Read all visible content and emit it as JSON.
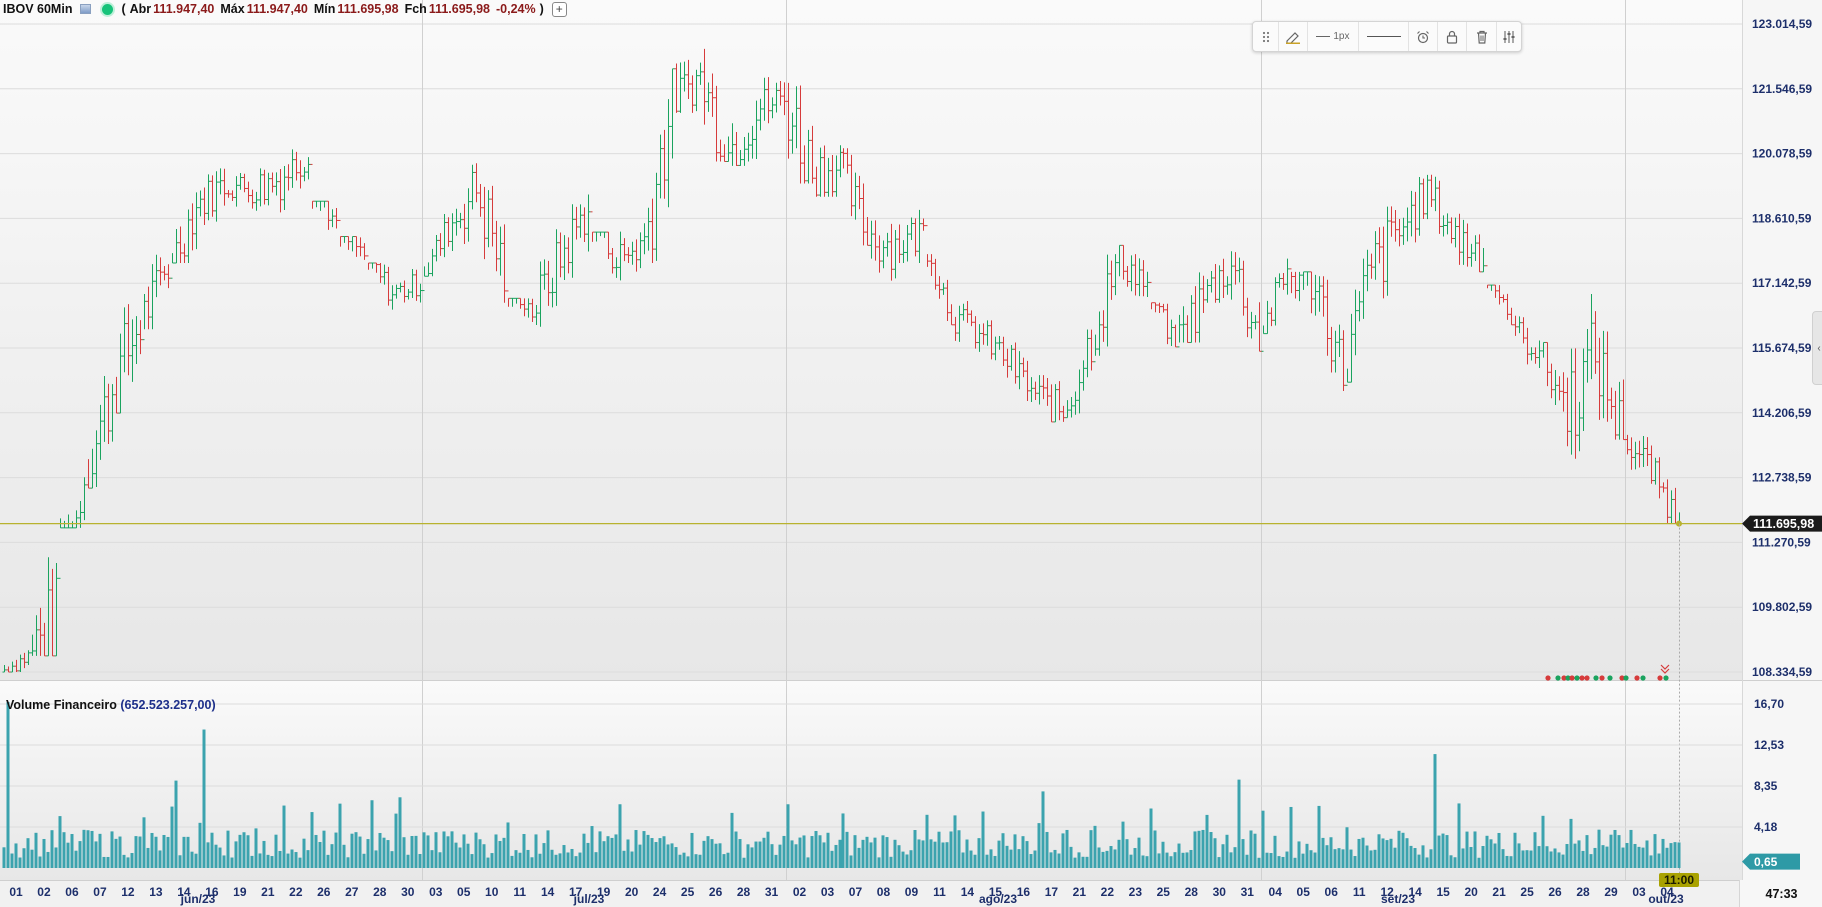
{
  "header": {
    "symbol": "IBOV 60Min",
    "paren_open": "(",
    "open_label": "Abr",
    "open_value": "111.947,40",
    "high_label": "Máx",
    "high_value": "111.947,40",
    "low_label": "Mín",
    "low_value": "111.695,98",
    "close_label": "Fch",
    "close_value": "111.695,98",
    "change_value": "-0,24%",
    "paren_close": ")",
    "add_label": "+"
  },
  "volume_legend": {
    "name": "Volume Financeiro",
    "value": "(652.523.257,00)"
  },
  "toolbar": {
    "width_label": "1px"
  },
  "side_tab": {
    "arrow": "‹"
  },
  "clock": {
    "time": "47:33"
  },
  "colors": {
    "up": "#1aa35e",
    "down": "#d63b3b",
    "volume": "#3ba3ae",
    "price_line": "#b8b22e",
    "axis_text": "#1d2f6b",
    "price_badge": "#1b1b1b",
    "time_badge": "#a9a200"
  },
  "icons": [
    "drag-handle-icon",
    "pencil-icon",
    "line-width-icon",
    "line-style-icon",
    "alarm-icon",
    "lock-icon",
    "trash-icon",
    "settings-sliders-icon"
  ],
  "chart_data": [
    {
      "type": "ohlc",
      "title": "IBOV 60Min",
      "ylim": [
        108334.59,
        123014.59
      ],
      "y_ticks": [
        "123.014,59",
        "121.546,59",
        "120.078,59",
        "118.610,59",
        "117.142,59",
        "115.674,59",
        "114.206,59",
        "112.738,59",
        "111.270,59",
        "109.802,59",
        "108.334,59"
      ],
      "y_tick_values": [
        123014.59,
        121546.59,
        120078.59,
        118610.59,
        117142.59,
        115674.59,
        114206.59,
        112738.59,
        111270.59,
        109802.59,
        108334.59
      ],
      "last_price": 111695.98,
      "last_price_label": "111.695,98",
      "x_day_labels": [
        "01",
        "02",
        "06",
        "07",
        "12",
        "13",
        "14",
        "16",
        "19",
        "21",
        "22",
        "26",
        "27",
        "28",
        "30",
        "03",
        "05",
        "10",
        "11",
        "14",
        "17",
        "19",
        "20",
        "24",
        "25",
        "26",
        "28",
        "31",
        "02",
        "03",
        "07",
        "08",
        "09",
        "11",
        "14",
        "15",
        "16",
        "17",
        "21",
        "22",
        "23",
        "25",
        "28",
        "30",
        "31",
        "04",
        "05",
        "06",
        "11",
        "12",
        "14",
        "15",
        "20",
        "21",
        "25",
        "26",
        "28",
        "29",
        "03",
        "04"
      ],
      "x_month_labels": [
        "jun/23",
        "jul/23",
        "ago/23",
        "set/23",
        "out/23"
      ],
      "current_time_label": "11:00",
      "grid": true,
      "closes_by_day": [
        108700,
        109500,
        112700,
        114700,
        116300,
        117450,
        118900,
        119400,
        119250,
        119500,
        120100,
        118300,
        117800,
        116900,
        117150,
        118400,
        119300,
        117400,
        116500,
        117700,
        118900,
        117600,
        118100,
        121300,
        121800,
        120100,
        121100,
        121300,
        119700,
        119800,
        118200,
        118000,
        118300,
        116400,
        116000,
        115400,
        114600,
        114200,
        115900,
        117700,
        117100,
        115700,
        116800,
        117600,
        115900,
        117400,
        117200,
        115100,
        117400,
        118300,
        119200,
        118200,
        117800,
        116100,
        115600,
        114300,
        115500,
        113600,
        112900,
        111696
      ],
      "highs_by_day": [
        109200,
        112900,
        113300,
        115900,
        117900,
        118300,
        119700,
        119900,
        119700,
        120200,
        120500,
        119000,
        118200,
        117600,
        117600,
        118800,
        119900,
        119900,
        116800,
        118400,
        119500,
        118300,
        119100,
        122000,
        123000,
        122900,
        122600,
        121900,
        122900,
        121400,
        120200,
        119500,
        119500,
        117800,
        116800,
        116300,
        115800,
        115700,
        116600,
        118000,
        118000,
        116700,
        118200,
        118700,
        118200,
        117700,
        117400,
        117300,
        118100,
        119800,
        119900,
        119600,
        119700,
        117100,
        116600,
        115800,
        117100,
        116800,
        114300,
        113200
      ],
      "lows_by_day": [
        108334,
        108700,
        111600,
        112500,
        114200,
        116100,
        117600,
        118200,
        118400,
        118300,
        118800,
        117700,
        116900,
        116400,
        116500,
        117300,
        117500,
        116700,
        115700,
        116100,
        117200,
        117000,
        116900,
        117600,
        121000,
        119900,
        119800,
        120000,
        119400,
        119100,
        118000,
        117200,
        117600,
        116200,
        115400,
        114800,
        114200,
        114000,
        114100,
        115500,
        116400,
        115700,
        115800,
        116700,
        115600,
        116000,
        115200,
        114700,
        114900,
        116800,
        118000,
        117900,
        117400,
        116200,
        115200,
        113300,
        113100,
        113600,
        112600,
        111696
      ],
      "volume": {
        "name": "Volume Financeiro",
        "last_value_label": "0,65",
        "ylim": [
          0,
          16.7
        ],
        "y_ticks": [
          "16,70",
          "12,53",
          "8,35",
          "4,18"
        ],
        "y_tick_values": [
          16.7,
          12.53,
          8.35,
          4.18
        ],
        "typical_level": 2.3,
        "spikes": [
          {
            "day": "01",
            "value": 16.9
          },
          {
            "day": "14",
            "value": 8.9
          },
          {
            "day": "16",
            "value": 14.1
          },
          {
            "day": "28",
            "value": 6.9
          },
          {
            "day": "30",
            "value": 7.2
          },
          {
            "day": "17",
            "value": 7.8
          },
          {
            "day": "31",
            "value": 9.0
          },
          {
            "day": "15",
            "value": 11.6
          }
        ]
      }
    }
  ]
}
